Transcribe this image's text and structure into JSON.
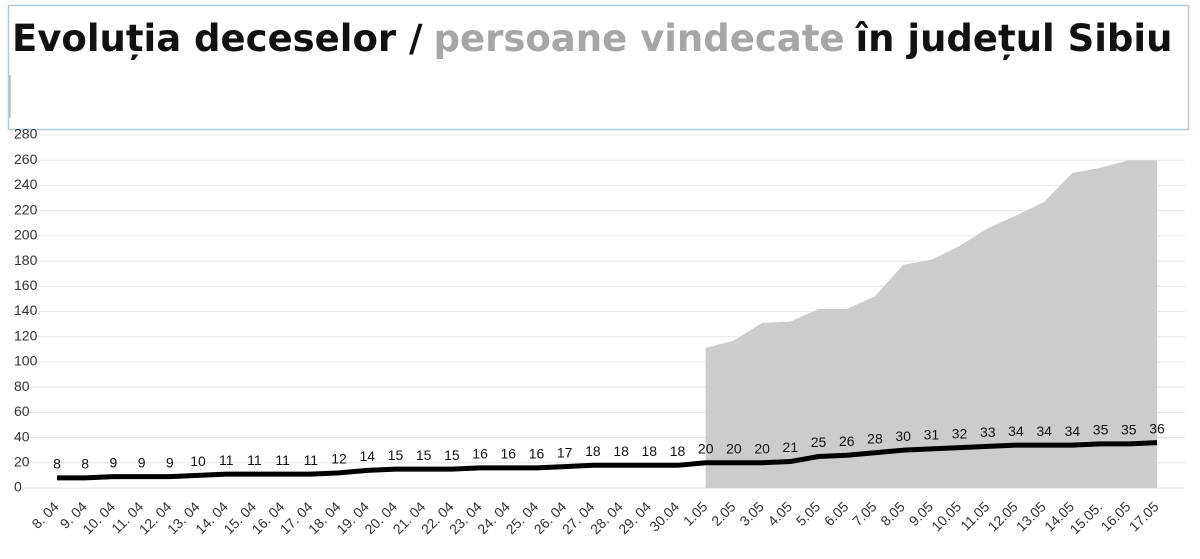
{
  "chart_data": {
    "type": "line",
    "title_segments": [
      {
        "text": "Evoluția deceselor /",
        "color": "#111111"
      },
      {
        "text": "persoane vindecate",
        "color": "#a6a6a6"
      },
      {
        "text": "în județul Sibiu",
        "color": "#111111"
      }
    ],
    "categories": [
      "8. 04",
      "9. 04",
      "10. 04",
      "11. 04",
      "12. 04",
      "13. 04",
      "14. 04",
      "15. 04",
      "16. 04",
      "17. 04",
      "18. 04",
      "19. 04",
      "20. 04",
      "21. 04",
      "22. 04",
      "23. 04",
      "24. 04",
      "25. 04",
      "26. 04",
      "27. 04",
      "28. 04",
      "29. 04",
      "30.04",
      "1.05",
      "2.05",
      "3.05",
      "4.05",
      "5.05",
      "6.05",
      "7.05",
      "8.05",
      "9.05",
      "10.05",
      "11.05",
      "12.05",
      "13.05",
      "14.05",
      "15.05.",
      "16.05",
      "17.05"
    ],
    "series": [
      {
        "kind": "area",
        "color": "#cccccc",
        "values": [
          null,
          null,
          null,
          null,
          null,
          null,
          null,
          null,
          null,
          null,
          null,
          null,
          null,
          null,
          null,
          null,
          null,
          null,
          null,
          null,
          null,
          null,
          null,
          111,
          117,
          131,
          132,
          142,
          142,
          152,
          177,
          181,
          192,
          206,
          216,
          227,
          250,
          254,
          260,
          260
        ]
      },
      {
        "kind": "line",
        "color": "#000000",
        "values": [
          8,
          8,
          9,
          9,
          9,
          10,
          11,
          11,
          11,
          11,
          12,
          14,
          15,
          15,
          15,
          16,
          16,
          16,
          17,
          18,
          18,
          18,
          18,
          20,
          20,
          20,
          21,
          25,
          26,
          28,
          30,
          31,
          32,
          33,
          34,
          34,
          34,
          35,
          35,
          36
        ]
      }
    ],
    "ylim": [
      0,
      280
    ],
    "yticks": [
      0,
      20,
      40,
      60,
      80,
      100,
      120,
      140,
      160,
      180,
      200,
      220,
      240,
      260,
      280
    ],
    "grid": true
  }
}
